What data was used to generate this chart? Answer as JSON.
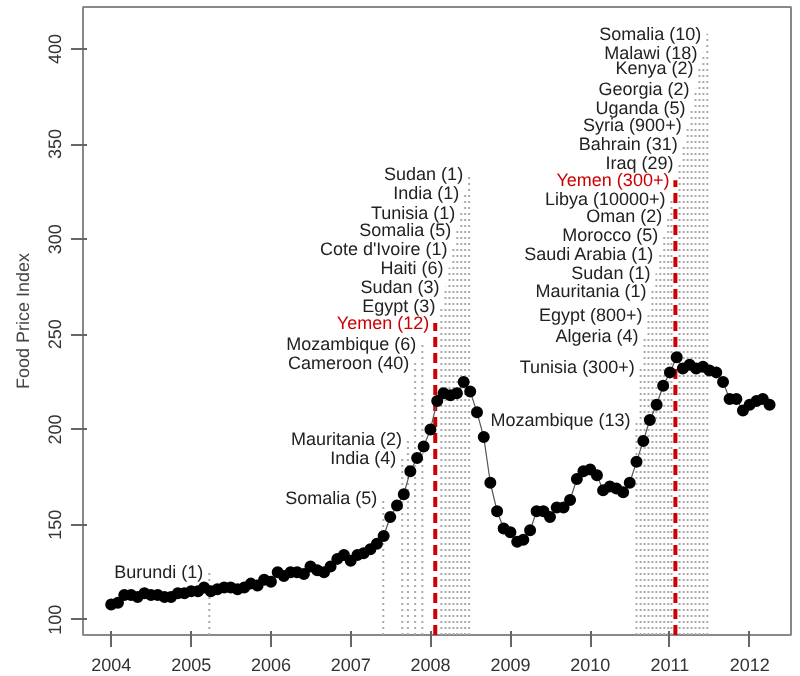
{
  "chart_data": {
    "type": "line",
    "ylabel": "Food Price Index",
    "marker": "circle",
    "grid": false,
    "x": [
      "2004-01",
      "2004-02",
      "2004-03",
      "2004-04",
      "2004-05",
      "2004-06",
      "2004-07",
      "2004-08",
      "2004-09",
      "2004-10",
      "2004-11",
      "2004-12",
      "2005-01",
      "2005-02",
      "2005-03",
      "2005-04",
      "2005-05",
      "2005-06",
      "2005-07",
      "2005-08",
      "2005-09",
      "2005-10",
      "2005-11",
      "2005-12",
      "2006-01",
      "2006-02",
      "2006-03",
      "2006-04",
      "2006-05",
      "2006-06",
      "2006-07",
      "2006-08",
      "2006-09",
      "2006-10",
      "2006-11",
      "2006-12",
      "2007-01",
      "2007-02",
      "2007-03",
      "2007-04",
      "2007-05",
      "2007-06",
      "2007-07",
      "2007-08",
      "2007-09",
      "2007-10",
      "2007-11",
      "2007-12",
      "2008-01",
      "2008-02",
      "2008-03",
      "2008-04",
      "2008-05",
      "2008-06",
      "2008-07",
      "2008-08",
      "2008-09",
      "2008-10",
      "2008-11",
      "2008-12",
      "2009-01",
      "2009-02",
      "2009-03",
      "2009-04",
      "2009-05",
      "2009-06",
      "2009-07",
      "2009-08",
      "2009-09",
      "2009-10",
      "2009-11",
      "2009-12",
      "2010-01",
      "2010-02",
      "2010-03",
      "2010-04",
      "2010-05",
      "2010-06",
      "2010-07",
      "2010-08",
      "2010-09",
      "2010-10",
      "2010-11",
      "2010-12",
      "2011-01",
      "2011-02",
      "2011-03",
      "2011-04",
      "2011-05",
      "2011-06",
      "2011-07",
      "2011-08",
      "2011-09",
      "2011-10",
      "2011-11",
      "2011-12",
      "2012-01",
      "2012-02",
      "2012-03",
      "2012-04"
    ],
    "series": [
      {
        "color": "#000000",
        "values": [
          108,
          109,
          113,
          113,
          112,
          114,
          113,
          113,
          112,
          112,
          114,
          114,
          115,
          115,
          117,
          115,
          116,
          117,
          117,
          116,
          117,
          119,
          118,
          121,
          120,
          125,
          123,
          125,
          125,
          124,
          128,
          126,
          125,
          128,
          132,
          134,
          131,
          134,
          135,
          137,
          140,
          144,
          154,
          160,
          166,
          178,
          185,
          191,
          200,
          215,
          219,
          218,
          219,
          225,
          220,
          209,
          196,
          172,
          157,
          148,
          146,
          141,
          142,
          147,
          157,
          157,
          154,
          159,
          159,
          163,
          174,
          178,
          179,
          176,
          168,
          170,
          169,
          167,
          172,
          183,
          194,
          205,
          213,
          223,
          230,
          238,
          232,
          234,
          232,
          233,
          231,
          230,
          225,
          216,
          216,
          210,
          213,
          215,
          216,
          213
        ]
      }
    ],
    "xlim": [
      "2003-08-25",
      "2012-07-08"
    ],
    "xticks": [
      "2004",
      "2005",
      "2006",
      "2007",
      "2008",
      "2009",
      "2010",
      "2011",
      "2012"
    ],
    "ylim": [
      92,
      422
    ],
    "yticks": [
      100,
      150,
      200,
      250,
      300,
      350,
      400
    ],
    "ref_lines": [
      {
        "axis": "x",
        "value": "2005-03-25",
        "color": "#aaaaaa",
        "line_style": "dotted"
      },
      {
        "axis": "x",
        "value": "2007-05-30",
        "color": "#aaaaaa",
        "line_style": "dotted"
      },
      {
        "axis": "x",
        "value": "2007-08-25",
        "color": "#aaaaaa",
        "line_style": "dotted"
      },
      {
        "axis": "x",
        "value": "2007-09-20",
        "color": "#aaaaaa",
        "line_style": "dotted"
      },
      {
        "axis": "x",
        "value": "2007-10-23",
        "color": "#aaaaaa",
        "line_style": "dotted"
      },
      {
        "axis": "x",
        "value": "2007-11-25",
        "color": "#aaaaaa",
        "line_style": "dotted"
      },
      {
        "axis": "x",
        "value": "2008-01-23",
        "color": "#cc0000",
        "line_style": "dashed"
      },
      {
        "axis": "x",
        "value": "2008-02-20",
        "color": "#aaaaaa",
        "line_style": "dotted"
      },
      {
        "axis": "x",
        "value": "2008-03-10",
        "color": "#aaaaaa",
        "line_style": "dotted"
      },
      {
        "axis": "x",
        "value": "2008-03-28",
        "color": "#aaaaaa",
        "line_style": "dotted"
      },
      {
        "axis": "x",
        "value": "2008-04-15",
        "color": "#aaaaaa",
        "line_style": "dotted"
      },
      {
        "axis": "x",
        "value": "2008-05-03",
        "color": "#aaaaaa",
        "line_style": "dotted"
      },
      {
        "axis": "x",
        "value": "2008-05-21",
        "color": "#aaaaaa",
        "line_style": "dotted"
      },
      {
        "axis": "x",
        "value": "2008-06-08",
        "color": "#aaaaaa",
        "line_style": "dotted"
      },
      {
        "axis": "x",
        "value": "2008-06-26",
        "color": "#aaaaaa",
        "line_style": "dotted"
      },
      {
        "axis": "x",
        "value": "2010-08-01",
        "color": "#aaaaaa",
        "line_style": "dotted"
      },
      {
        "axis": "x",
        "value": "2010-08-20",
        "color": "#aaaaaa",
        "line_style": "dotted"
      },
      {
        "axis": "x",
        "value": "2010-09-07",
        "color": "#aaaaaa",
        "line_style": "dotted"
      },
      {
        "axis": "x",
        "value": "2010-09-25",
        "color": "#aaaaaa",
        "line_style": "dotted"
      },
      {
        "axis": "x",
        "value": "2010-10-13",
        "color": "#aaaaaa",
        "line_style": "dotted"
      },
      {
        "axis": "x",
        "value": "2010-10-31",
        "color": "#aaaaaa",
        "line_style": "dotted"
      },
      {
        "axis": "x",
        "value": "2010-11-18",
        "color": "#aaaaaa",
        "line_style": "dotted"
      },
      {
        "axis": "x",
        "value": "2010-12-06",
        "color": "#aaaaaa",
        "line_style": "dotted"
      },
      {
        "axis": "x",
        "value": "2010-12-24",
        "color": "#aaaaaa",
        "line_style": "dotted"
      },
      {
        "axis": "x",
        "value": "2011-01-08",
        "color": "#aaaaaa",
        "line_style": "dotted"
      },
      {
        "axis": "x",
        "value": "2011-01-26",
        "color": "#cc0000",
        "line_style": "dashed"
      },
      {
        "axis": "x",
        "value": "2011-02-14",
        "color": "#aaaaaa",
        "line_style": "dotted"
      },
      {
        "axis": "x",
        "value": "2011-03-05",
        "color": "#aaaaaa",
        "line_style": "dotted"
      },
      {
        "axis": "x",
        "value": "2011-03-23",
        "color": "#aaaaaa",
        "line_style": "dotted"
      },
      {
        "axis": "x",
        "value": "2011-04-10",
        "color": "#aaaaaa",
        "line_style": "dotted"
      },
      {
        "axis": "x",
        "value": "2011-04-28",
        "color": "#aaaaaa",
        "line_style": "dotted"
      },
      {
        "axis": "x",
        "value": "2011-05-16",
        "color": "#aaaaaa",
        "line_style": "dotted"
      },
      {
        "axis": "x",
        "value": "2011-06-03",
        "color": "#aaaaaa",
        "line_style": "dotted"
      },
      {
        "axis": "x",
        "value": "2011-06-21",
        "color": "#aaaaaa",
        "line_style": "dotted"
      }
    ],
    "annotations": [
      {
        "text": "Burundi (1)",
        "x": "2005-03-25",
        "y": 125
      },
      {
        "text": "Somalia (5)",
        "x": "2007-05-30",
        "y": 164
      },
      {
        "text": "India (4)",
        "x": "2007-08-25",
        "y": 185
      },
      {
        "text": "Mauritania (2)",
        "x": "2007-09-20",
        "y": 195
      },
      {
        "text": "Cameroon (40)",
        "x": "2007-10-23",
        "y": 235
      },
      {
        "text": "Mozambique (6)",
        "x": "2007-11-25",
        "y": 245
      },
      {
        "text": "Yemen (12)",
        "x": "2008-01-23",
        "y": 256
      },
      {
        "text": "Egypt (3)",
        "x": "2008-02-20",
        "y": 265
      },
      {
        "text": "Sudan (3)",
        "x": "2008-03-10",
        "y": 275
      },
      {
        "text": "Haiti (6)",
        "x": "2008-03-28",
        "y": 285
      },
      {
        "text": "Cote d'Ivoire (1)",
        "x": "2008-04-15",
        "y": 295
      },
      {
        "text": "Somalia (5)",
        "x": "2008-05-03",
        "y": 305
      },
      {
        "text": "Tunisia (1)",
        "x": "2008-05-21",
        "y": 314
      },
      {
        "text": "India (1)",
        "x": "2008-06-08",
        "y": 324
      },
      {
        "text": "Sudan (1)",
        "x": "2008-06-26",
        "y": 334
      },
      {
        "text": "Mozambique (13)",
        "x": "2010-08-01",
        "y": 205
      },
      {
        "text": "Tunisia (300+)",
        "x": "2010-08-20",
        "y": 233
      },
      {
        "text": "Algeria (4)",
        "x": "2010-09-07",
        "y": 249
      },
      {
        "text": "Egypt (800+)",
        "x": "2010-09-25",
        "y": 260
      },
      {
        "text": "Mauritania (1)",
        "x": "2010-10-13",
        "y": 273
      },
      {
        "text": "Sudan (1)",
        "x": "2010-10-31",
        "y": 282
      },
      {
        "text": "Saudi Arabia (1)",
        "x": "2010-11-18",
        "y": 292
      },
      {
        "text": "Morocco (5)",
        "x": "2010-12-06",
        "y": 302
      },
      {
        "text": "Oman (2)",
        "x": "2010-12-24",
        "y": 312
      },
      {
        "text": "Libya (10000+)",
        "x": "2011-01-08",
        "y": 321
      },
      {
        "text": "Yemen (300+)",
        "x": "2011-01-26",
        "y": 331
      },
      {
        "text": "Iraq (29)",
        "x": "2011-02-14",
        "y": 340
      },
      {
        "text": "Bahrain (31)",
        "x": "2011-03-05",
        "y": 350
      },
      {
        "text": "Syria (900+)",
        "x": "2011-03-23",
        "y": 360
      },
      {
        "text": "Uganda (5)",
        "x": "2011-04-10",
        "y": 369
      },
      {
        "text": "Georgia (2)",
        "x": "2011-04-28",
        "y": 379
      },
      {
        "text": "Kenya (2)",
        "x": "2011-05-16",
        "y": 390
      },
      {
        "text": "Malawi (18)",
        "x": "2011-06-03",
        "y": 398
      },
      {
        "text": "Somalia (10)",
        "x": "2011-06-21",
        "y": 408
      }
    ]
  }
}
